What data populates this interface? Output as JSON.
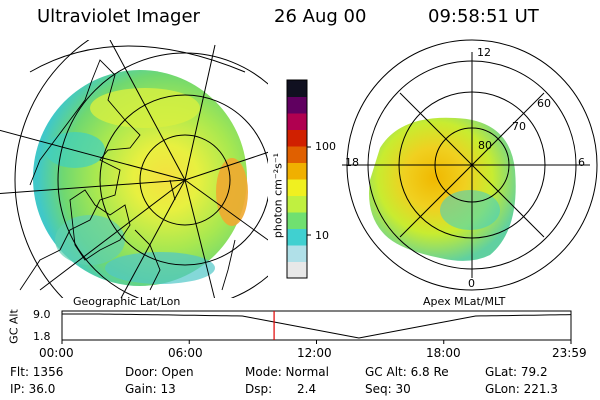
{
  "header": {
    "instrument": "Ultraviolet Imager",
    "date": "26 Aug 00",
    "time": "09:58:51  UT"
  },
  "left_panel": {
    "caption": "Geographic Lat/Lon",
    "icon": "geographic-projection-map"
  },
  "right_panel": {
    "caption": "Apex MLat/MLT",
    "lat_labels": [
      "80",
      "70",
      "60"
    ],
    "mlt_labels": [
      "12",
      "18",
      "6",
      "0"
    ]
  },
  "colorbar": {
    "unit_label": "photon cm⁻²s⁻¹",
    "tick_labels": [
      "100",
      "10"
    ],
    "colors": [
      "#e8e8e8",
      "#b0e0e8",
      "#40d0d0",
      "#70e070",
      "#c0f040",
      "#f0f020",
      "#f0b000",
      "#e06000",
      "#d02000",
      "#b00050",
      "#600060",
      "#101020"
    ]
  },
  "timeline": {
    "ylabel": "GC Alt",
    "y_ticks": [
      "9.0",
      "1.8"
    ],
    "x_ticks": [
      "00:00",
      "06:00",
      "12:00",
      "18:00",
      "23:59"
    ],
    "current_marker_hours": 10.0,
    "marker_color": "#e00000"
  },
  "info": {
    "flt": "Flt: 1356",
    "ip": "IP: 36.0",
    "door": "Door: Open",
    "gain": "Gain: 13",
    "mode": "Mode: Normal",
    "dsp_label": "Dsp:",
    "dsp_value": "2.4",
    "gc_alt": "GC Alt: 6.8 Re",
    "seq": "Seq: 30",
    "glat": "GLat:  79.2",
    "glon": "GLon: 221.3"
  }
}
